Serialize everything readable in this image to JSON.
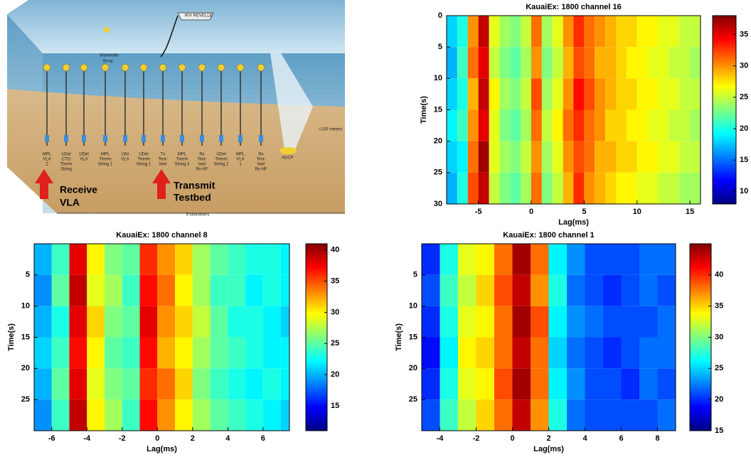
{
  "diagram": {
    "ship": "R/V REVELLE",
    "buoy": [
      "Waverider",
      "Buoy"
    ],
    "depth": "≈100 meters",
    "distance": "6 kilometers",
    "adcp": "ADCP",
    "receive": [
      "Receive",
      "VLA"
    ],
    "transmit": [
      "Transmit",
      "Testbed"
    ],
    "moorings": [
      [
        "MPL",
        "VLA",
        "2"
      ],
      [
        "UDel",
        "CTD",
        "Therm",
        "String"
      ],
      [
        "UDel",
        "VLA"
      ],
      [
        "MPL",
        "Therm",
        "String 1"
      ],
      [
        "UNI",
        "VLA"
      ],
      [
        "UDel",
        "Therm",
        "String 1"
      ],
      [
        "Tx",
        "Test-",
        "bed"
      ],
      [
        "MPL",
        "Therm",
        "String 3"
      ],
      [
        "Rx",
        "Test-",
        "bed",
        "Rx-HF"
      ],
      [
        "UDel",
        "Therm",
        "String 2"
      ],
      [
        "MPL",
        "VLA",
        "1"
      ],
      [
        "Rx",
        "Test-",
        "bed",
        "Rx-HF"
      ]
    ]
  },
  "chart_data": [
    {
      "type": "heatmap",
      "title": "KauaiEx: 1800 channel 16",
      "xlabel": "Lag(ms)",
      "ylabel": "Time(s)",
      "colormap": "jet",
      "xlim": [
        -8,
        16
      ],
      "xticks": [
        -5,
        0,
        5,
        10,
        15
      ],
      "ylim": [
        0,
        30
      ],
      "yticks": [
        0,
        5,
        10,
        15,
        20,
        25,
        30
      ],
      "yreverse": true,
      "clim": [
        8,
        38
      ],
      "cticks": [
        10,
        15,
        20,
        25,
        30,
        35
      ],
      "xedges": [
        -8,
        -7,
        -6,
        -5,
        -4,
        -3,
        -2,
        -1,
        0,
        1,
        2,
        3,
        4,
        5,
        6,
        7,
        8,
        9,
        10,
        11,
        12,
        13,
        14,
        15,
        16
      ],
      "yedges": [
        0,
        5,
        10,
        15,
        20,
        25,
        30
      ],
      "z": [
        [
          18,
          20,
          30,
          36,
          26,
          24,
          23,
          25,
          31,
          24,
          26,
          30,
          33,
          31,
          30,
          29,
          28,
          28,
          27,
          27,
          26,
          26,
          25,
          25
        ],
        [
          17,
          21,
          31,
          35,
          25,
          23,
          22,
          24,
          30,
          23,
          25,
          29,
          32,
          31,
          29,
          29,
          28,
          27,
          27,
          26,
          26,
          25,
          25,
          24
        ],
        [
          18,
          20,
          29,
          36,
          27,
          24,
          23,
          25,
          32,
          24,
          26,
          30,
          34,
          32,
          30,
          29,
          28,
          28,
          27,
          27,
          26,
          26,
          25,
          25
        ],
        [
          19,
          21,
          30,
          35,
          26,
          23,
          22,
          24,
          31,
          25,
          27,
          31,
          33,
          31,
          30,
          28,
          28,
          27,
          27,
          26,
          26,
          25,
          25,
          24
        ],
        [
          18,
          19,
          31,
          37,
          26,
          24,
          23,
          25,
          30,
          24,
          26,
          30,
          32,
          31,
          29,
          29,
          28,
          28,
          27,
          27,
          26,
          26,
          25,
          25
        ],
        [
          17,
          20,
          32,
          36,
          25,
          23,
          22,
          24,
          31,
          23,
          25,
          29,
          33,
          30,
          29,
          28,
          27,
          27,
          26,
          26,
          25,
          25,
          24,
          24
        ]
      ]
    },
    {
      "type": "heatmap",
      "title": "KauaiEx: 1800 channel 8",
      "xlabel": "Lag(ms)",
      "ylabel": "Time(s)",
      "colormap": "jet",
      "xlim": [
        -7,
        7.5
      ],
      "xticks": [
        -6,
        -4,
        -2,
        0,
        2,
        4,
        6
      ],
      "ylim": [
        0,
        30
      ],
      "yticks": [
        5,
        10,
        15,
        20,
        25
      ],
      "yreverse": true,
      "clim": [
        11,
        41
      ],
      "cticks": [
        15,
        20,
        25,
        30,
        35,
        40
      ],
      "xedges": [
        -7,
        -6,
        -5,
        -4,
        -3,
        -2,
        -1,
        0,
        1,
        2,
        3,
        4,
        5,
        6,
        7,
        7.5
      ],
      "yedges": [
        0,
        5,
        10,
        15,
        20,
        25,
        30
      ],
      "z": [
        [
          20,
          24,
          38,
          30,
          26,
          25,
          36,
          33,
          31,
          27,
          25,
          24,
          23,
          23,
          22
        ],
        [
          19,
          25,
          39,
          29,
          27,
          24,
          37,
          34,
          30,
          27,
          24,
          24,
          22,
          23,
          22
        ],
        [
          20,
          23,
          38,
          31,
          26,
          25,
          38,
          33,
          31,
          28,
          25,
          23,
          23,
          22,
          21
        ],
        [
          21,
          24,
          37,
          30,
          25,
          24,
          37,
          32,
          30,
          27,
          25,
          24,
          23,
          22,
          22
        ],
        [
          20,
          25,
          38,
          29,
          26,
          25,
          36,
          34,
          31,
          26,
          24,
          23,
          22,
          23,
          22
        ],
        [
          19,
          24,
          39,
          30,
          27,
          24,
          37,
          33,
          30,
          27,
          25,
          24,
          23,
          22,
          21
        ]
      ]
    },
    {
      "type": "heatmap",
      "title": "KauaiEx: 1800 channel 1",
      "xlabel": "Lag(ms)",
      "ylabel": "Time(s)",
      "colormap": "jet",
      "xlim": [
        -5,
        9
      ],
      "xticks": [
        -4,
        -2,
        0,
        2,
        4,
        6,
        8
      ],
      "ylim": [
        0,
        30
      ],
      "yticks": [
        5,
        10,
        15,
        20,
        25
      ],
      "yreverse": true,
      "clim": [
        15,
        45
      ],
      "cticks": [
        15,
        20,
        25,
        30,
        35,
        40
      ],
      "xedges": [
        -5,
        -4,
        -3,
        -2,
        -1,
        0,
        1,
        2,
        3,
        4,
        5,
        6,
        7,
        8,
        9
      ],
      "yedges": [
        0,
        5,
        10,
        15,
        20,
        25,
        30
      ],
      "z": [
        [
          20,
          27,
          33,
          34,
          38,
          44,
          38,
          26,
          23,
          21,
          21,
          21,
          22,
          22
        ],
        [
          21,
          28,
          32,
          35,
          39,
          43,
          37,
          27,
          22,
          21,
          20,
          21,
          22,
          21
        ],
        [
          20,
          27,
          33,
          34,
          38,
          44,
          39,
          26,
          23,
          22,
          21,
          21,
          21,
          22
        ],
        [
          19,
          26,
          34,
          35,
          38,
          43,
          38,
          25,
          22,
          21,
          20,
          21,
          22,
          22
        ],
        [
          20,
          27,
          33,
          34,
          39,
          44,
          38,
          26,
          23,
          21,
          21,
          20,
          22,
          21
        ],
        [
          21,
          28,
          32,
          35,
          38,
          43,
          37,
          27,
          22,
          21,
          21,
          21,
          21,
          22
        ]
      ]
    }
  ]
}
